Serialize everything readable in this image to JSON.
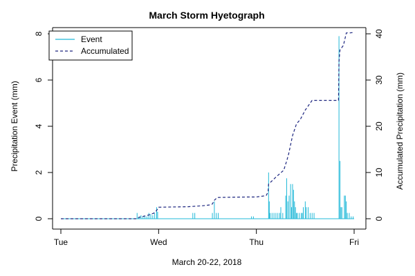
{
  "chart_data": {
    "type": "line",
    "title": "March Storm Hyetograph",
    "xlabel": "March 20-22, 2018",
    "ylabel_left": "Precipitation Event (mm)",
    "ylabel_right": "Accumulated Precipitation (mm)",
    "x_unit": "days since Tue 00:00",
    "x_range": [
      0,
      3
    ],
    "x_ticks": [
      {
        "value": 0,
        "label": "Tue"
      },
      {
        "value": 1,
        "label": "Wed"
      },
      {
        "value": 2,
        "label": "Thu"
      },
      {
        "value": 3,
        "label": "Fri"
      }
    ],
    "y_left": {
      "range": [
        0,
        8
      ],
      "ticks": [
        0,
        2,
        4,
        6,
        8
      ]
    },
    "y_right": {
      "range": [
        0,
        40
      ],
      "ticks": [
        0,
        10,
        20,
        30,
        40
      ]
    },
    "grid": false,
    "legend_position": "top-left",
    "series": [
      {
        "name": "Event",
        "type": "bar",
        "axis": "left",
        "color": "#1FB8D8",
        "points": [
          [
            0.78,
            0.25
          ],
          [
            0.8,
            0.1
          ],
          [
            0.82,
            0.15
          ],
          [
            0.84,
            0.1
          ],
          [
            0.86,
            0.1
          ],
          [
            0.88,
            0.1
          ],
          [
            0.9,
            0.25
          ],
          [
            0.92,
            0.2
          ],
          [
            0.94,
            0.15
          ],
          [
            0.96,
            0.25
          ],
          [
            0.98,
            0.5
          ],
          [
            0.99,
            0.3
          ],
          [
            1.35,
            0.25
          ],
          [
            1.37,
            0.25
          ],
          [
            1.55,
            0.25
          ],
          [
            1.57,
            0.75
          ],
          [
            1.59,
            0.25
          ],
          [
            1.61,
            0.25
          ],
          [
            1.95,
            0.1
          ],
          [
            1.97,
            0.1
          ],
          [
            2.125,
            2.0
          ],
          [
            2.132,
            0.75
          ],
          [
            2.14,
            0.25
          ],
          [
            2.16,
            0.25
          ],
          [
            2.18,
            0.25
          ],
          [
            2.2,
            0.25
          ],
          [
            2.22,
            0.25
          ],
          [
            2.24,
            0.25
          ],
          [
            2.25,
            0.5
          ],
          [
            2.27,
            0.25
          ],
          [
            2.3,
            1.0
          ],
          [
            2.31,
            1.75
          ],
          [
            2.322,
            0.75
          ],
          [
            2.335,
            1.0
          ],
          [
            2.35,
            1.5
          ],
          [
            2.36,
            0.5
          ],
          [
            2.37,
            1.5
          ],
          [
            2.38,
            1.25
          ],
          [
            2.39,
            0.75
          ],
          [
            2.4,
            0.5
          ],
          [
            2.41,
            0.25
          ],
          [
            2.42,
            0.25
          ],
          [
            2.44,
            0.25
          ],
          [
            2.46,
            0.25
          ],
          [
            2.47,
            0.25
          ],
          [
            2.48,
            0.5
          ],
          [
            2.5,
            0.75
          ],
          [
            2.51,
            0.5
          ],
          [
            2.53,
            0.5
          ],
          [
            2.55,
            0.25
          ],
          [
            2.57,
            0.25
          ],
          [
            2.59,
            0.25
          ],
          [
            2.845,
            7.9
          ],
          [
            2.855,
            2.5
          ],
          [
            2.865,
            0.5
          ],
          [
            2.875,
            0.5
          ],
          [
            2.9,
            1.0
          ],
          [
            2.91,
            1.0
          ],
          [
            2.92,
            0.75
          ],
          [
            2.93,
            0.25
          ],
          [
            2.95,
            0.25
          ],
          [
            2.97,
            0.1
          ],
          [
            2.99,
            0.1
          ]
        ]
      },
      {
        "name": "Accumulated",
        "type": "line",
        "style": "dashed",
        "axis": "right",
        "color": "#1A237E",
        "points": [
          [
            0,
            0
          ],
          [
            0.78,
            0
          ],
          [
            0.8,
            0.3
          ],
          [
            0.9,
            0.8
          ],
          [
            0.95,
            1.2
          ],
          [
            0.98,
            1.8
          ],
          [
            1.0,
            2.5
          ],
          [
            1.3,
            2.6
          ],
          [
            1.45,
            2.8
          ],
          [
            1.53,
            3.0
          ],
          [
            1.55,
            3.2
          ],
          [
            1.57,
            4.0
          ],
          [
            1.6,
            4.6
          ],
          [
            1.9,
            4.7
          ],
          [
            2.0,
            4.7
          ],
          [
            2.1,
            5.0
          ],
          [
            2.12,
            5.8
          ],
          [
            2.125,
            7.5
          ],
          [
            2.2,
            9.0
          ],
          [
            2.28,
            10.5
          ],
          [
            2.31,
            12.5
          ],
          [
            2.33,
            14.0
          ],
          [
            2.37,
            18.0
          ],
          [
            2.41,
            20.5
          ],
          [
            2.45,
            21.5
          ],
          [
            2.5,
            23.5
          ],
          [
            2.57,
            25.6
          ],
          [
            2.84,
            25.6
          ],
          [
            2.845,
            34.0
          ],
          [
            2.855,
            36.5
          ],
          [
            2.89,
            37.5
          ],
          [
            2.92,
            40.2
          ],
          [
            2.96,
            40.2
          ],
          [
            2.99,
            40.3
          ]
        ]
      }
    ]
  }
}
